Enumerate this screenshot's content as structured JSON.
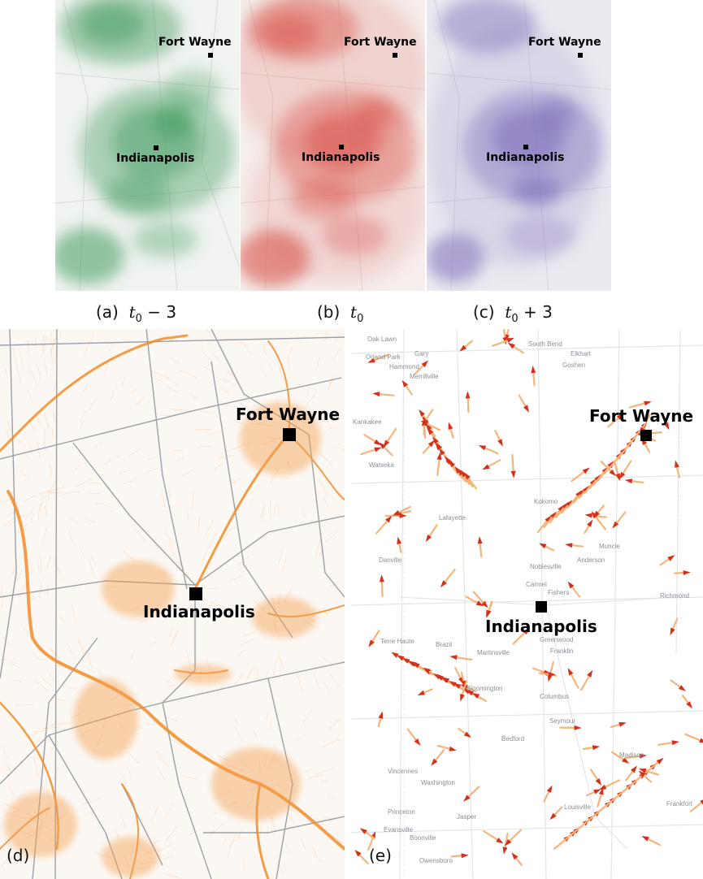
{
  "cities": {
    "fort_wayne": "Fort Wayne",
    "indianapolis": "Indianapolis"
  },
  "captions": {
    "a": {
      "tag": "(a)",
      "var": "t",
      "sub": "0",
      "rest": " − 3"
    },
    "b": {
      "tag": "(b)",
      "var": "t",
      "sub": "0",
      "rest": ""
    },
    "c": {
      "tag": "(c)",
      "var": "t",
      "sub": "0",
      "rest": " + 3"
    }
  },
  "panel_tags": {
    "d": "(d)",
    "e": "(e)"
  },
  "map_towns": [
    "Oak Lawn",
    "Gary",
    "Orland Park",
    "Hammond",
    "Merrillville",
    "South Bend",
    "Elkhart",
    "Goshen",
    "Kankakee",
    "Watseka",
    "Lafayette",
    "Kokomo",
    "Muncie",
    "Anderson",
    "Noblesville",
    "Carmel",
    "Fishers",
    "Danville",
    "Richmond",
    "Terre Haute",
    "Brazil",
    "Martinsville",
    "Greenwood",
    "Franklin",
    "Bloomington",
    "Columbus",
    "Seymour",
    "Bedford",
    "Vincennes",
    "Washington",
    "Jasper",
    "Princeton",
    "Evansville",
    "Boonville",
    "Owensboro",
    "Louisville",
    "Frankfort",
    "Madison"
  ],
  "colors": {
    "green_heat": "#3f9a5c",
    "red_heat": "#d9534a",
    "purple_heat": "#7a68b8",
    "flow_orange": "#f28c28",
    "arrow_red": "#d4301c",
    "arrow_tail": "#f5b57a"
  }
}
